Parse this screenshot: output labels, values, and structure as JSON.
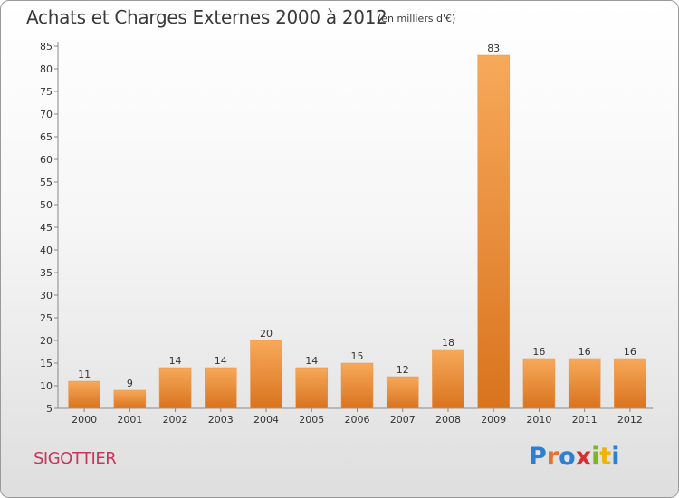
{
  "title": "Achats et Charges Externes 2000 à 2012",
  "subtitle": "(en milliers d'€)",
  "commune": "SIGOTTIER",
  "logo": {
    "letters": [
      {
        "char": "P",
        "color": "#2e7fd1"
      },
      {
        "char": "r",
        "color": "#e8732a"
      },
      {
        "char": "o",
        "color": "#2e7fd1"
      },
      {
        "char": "x",
        "color": "#d62f2f"
      },
      {
        "char": "i",
        "color": "#7fb520"
      },
      {
        "char": "t",
        "color": "#f0b400"
      },
      {
        "char": "i",
        "color": "#2e7fd1"
      }
    ]
  },
  "chart_data": {
    "type": "bar",
    "title": "Achats et Charges Externes 2000 à 2012",
    "subtitle": "(en milliers d'€)",
    "categories": [
      "2000",
      "2001",
      "2002",
      "2003",
      "2004",
      "2005",
      "2006",
      "2007",
      "2008",
      "2009",
      "2010",
      "2011",
      "2012"
    ],
    "values": [
      11,
      9,
      14,
      14,
      20,
      14,
      15,
      12,
      18,
      83,
      16,
      16,
      16
    ],
    "ylim": [
      5,
      85
    ],
    "yticks": [
      5,
      10,
      15,
      20,
      25,
      30,
      35,
      40,
      45,
      50,
      55,
      60,
      65,
      70,
      75,
      80,
      85
    ],
    "grid": false,
    "bar_color_top": "#f7a95a",
    "bar_color_bottom": "#d9731e"
  }
}
